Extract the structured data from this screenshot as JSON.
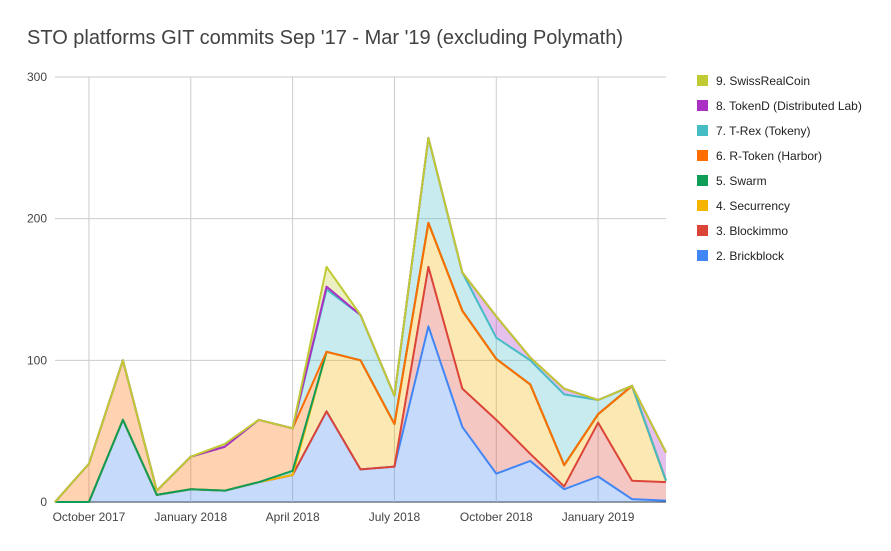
{
  "chart_data": {
    "type": "area",
    "title": "STO platforms GIT commits Sep '17 - Mar '19 (excluding Polymath)",
    "stacked": true,
    "y_ticks": [
      0,
      100,
      200,
      300
    ],
    "ylim": [
      0,
      300
    ],
    "x_tick_labels": [
      {
        "label": "October 2017",
        "index": 1
      },
      {
        "label": "January 2018",
        "index": 4
      },
      {
        "label": "April 2018",
        "index": 7
      },
      {
        "label": "July 2018",
        "index": 10
      },
      {
        "label": "October 2018",
        "index": 13
      },
      {
        "label": "January 2019",
        "index": 16
      }
    ],
    "x": [
      "Sep 2017",
      "Oct 2017",
      "Nov 2017",
      "Dec 2017",
      "Jan 2018",
      "Feb 2018",
      "Mar 2018",
      "Apr 2018",
      "May 2018",
      "Jun 2018",
      "Jul 2018",
      "Aug 2018",
      "Sep 2018",
      "Oct 2018",
      "Nov 2018",
      "Dec 2018",
      "Jan 2019",
      "Feb 2019",
      "Mar 2019"
    ],
    "grid": true,
    "legend_position": "right",
    "series": [
      {
        "name": "2. Brickblock",
        "color": "#4285f4",
        "values": [
          0,
          0,
          58,
          5,
          9,
          8,
          14,
          19,
          64,
          23,
          25,
          124,
          53,
          20,
          29,
          9,
          18,
          2,
          1
        ]
      },
      {
        "name": "3. Blockimmo",
        "color": "#db4437",
        "values": [
          0,
          0,
          0,
          0,
          0,
          0,
          0,
          0,
          0,
          0,
          0,
          42,
          27,
          38,
          5,
          2,
          38,
          13,
          13
        ]
      },
      {
        "name": "4. Securrency",
        "color": "#f4b400",
        "values": [
          0,
          0,
          0,
          0,
          0,
          0,
          0,
          0,
          42,
          77,
          30,
          31,
          55,
          43,
          49,
          15,
          6,
          67,
          1
        ]
      },
      {
        "name": "5. Swarm",
        "color": "#0f9d58",
        "values": [
          0,
          0,
          0,
          0,
          0,
          0,
          0,
          3,
          0,
          0,
          0,
          0,
          0,
          0,
          0,
          0,
          0,
          0,
          0
        ]
      },
      {
        "name": "6. R-Token (Harbor)",
        "color": "#ff6d01",
        "values": [
          0,
          27,
          42,
          3,
          23,
          31,
          44,
          30,
          0,
          0,
          0,
          0,
          0,
          0,
          0,
          0,
          0,
          0,
          0
        ]
      },
      {
        "name": "7. T-Rex (Tokeny)",
        "color": "#46bdc6",
        "values": [
          0,
          0,
          0,
          0,
          0,
          0,
          0,
          0,
          44,
          32,
          20,
          60,
          27,
          15,
          17,
          50,
          10,
          0,
          0
        ]
      },
      {
        "name": "8. TokenD (Distributed Lab)",
        "color": "#ab30c4",
        "values": [
          0,
          0,
          0,
          0,
          0,
          0,
          0,
          0,
          2,
          0,
          0,
          0,
          0,
          15,
          2,
          4,
          0,
          0,
          20
        ]
      },
      {
        "name": "9. SwissRealCoin",
        "color": "#c0ca33",
        "values": [
          0,
          0,
          0,
          0,
          0,
          2,
          0,
          0,
          14,
          0,
          0,
          0,
          0,
          0,
          0,
          0,
          0,
          0,
          0
        ]
      }
    ]
  }
}
